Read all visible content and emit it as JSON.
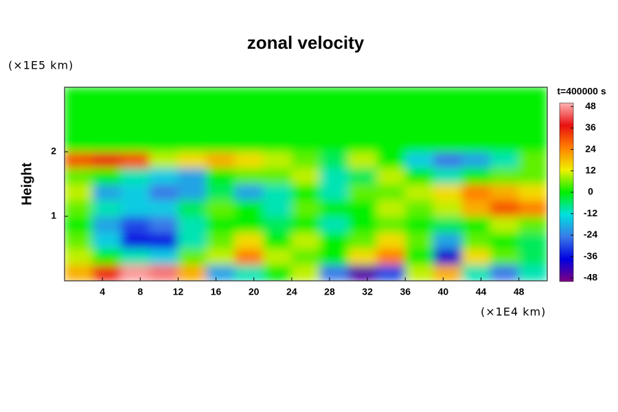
{
  "chart_data": {
    "type": "heatmap",
    "title": "zonal velocity",
    "y_label": "Height",
    "y_unit": "(×1E5 km)",
    "x_unit": "(×1E4 km)",
    "time_label": "t=400000 s",
    "xlim": [
      0,
      51
    ],
    "ylim": [
      0,
      3
    ],
    "xticks": [
      4,
      8,
      12,
      16,
      20,
      24,
      28,
      32,
      36,
      40,
      44,
      48
    ],
    "yticks": [
      1,
      2
    ],
    "x_edges": [
      0,
      3,
      6,
      9,
      12,
      15,
      18,
      21,
      24,
      27,
      30,
      33,
      36,
      39,
      42,
      45,
      48,
      51
    ],
    "y_edges": [
      0,
      0.25,
      0.5,
      0.75,
      1,
      1.25,
      1.5,
      1.75,
      2,
      3
    ],
    "z": [
      [
        20,
        35,
        48,
        45,
        20,
        -20,
        -10,
        0,
        10,
        -25,
        -45,
        -30,
        10,
        20,
        -10,
        -25,
        -10
      ],
      [
        10,
        0,
        -10,
        -15,
        5,
        10,
        25,
        10,
        5,
        0,
        15,
        25,
        0,
        -40,
        15,
        5,
        -5
      ],
      [
        5,
        -15,
        -35,
        -35,
        -10,
        5,
        15,
        0,
        10,
        0,
        5,
        15,
        5,
        -20,
        5,
        0,
        -5
      ],
      [
        0,
        -20,
        -30,
        -25,
        -10,
        0,
        0,
        -5,
        0,
        -10,
        0,
        5,
        0,
        -5,
        0,
        10,
        5
      ],
      [
        5,
        -10,
        -15,
        -15,
        -5,
        5,
        0,
        -10,
        5,
        0,
        0,
        10,
        5,
        10,
        20,
        30,
        25
      ],
      [
        10,
        -20,
        -15,
        -25,
        -20,
        -5,
        -20,
        -10,
        0,
        -10,
        5,
        5,
        10,
        15,
        25,
        20,
        15
      ],
      [
        5,
        0,
        -10,
        -15,
        -20,
        0,
        5,
        5,
        10,
        -10,
        -5,
        10,
        0,
        -10,
        0,
        5,
        5
      ],
      [
        30,
        35,
        30,
        10,
        15,
        20,
        15,
        10,
        5,
        -5,
        10,
        0,
        -15,
        -25,
        -20,
        -10,
        5
      ],
      [
        0,
        0,
        0,
        0,
        0,
        0,
        0,
        0,
        0,
        0,
        0,
        0,
        0,
        0,
        0,
        0,
        0
      ]
    ],
    "clim": [
      -50,
      50
    ],
    "cticks": [
      -48,
      -36,
      -24,
      -12,
      0,
      12,
      24,
      36,
      48
    ],
    "colormap": [
      "#800080",
      "#0000e0",
      "#3a7ae8",
      "#00e0e0",
      "#00f000",
      "#f0f000",
      "#ff8000",
      "#e81010",
      "#ffb4b4"
    ]
  }
}
